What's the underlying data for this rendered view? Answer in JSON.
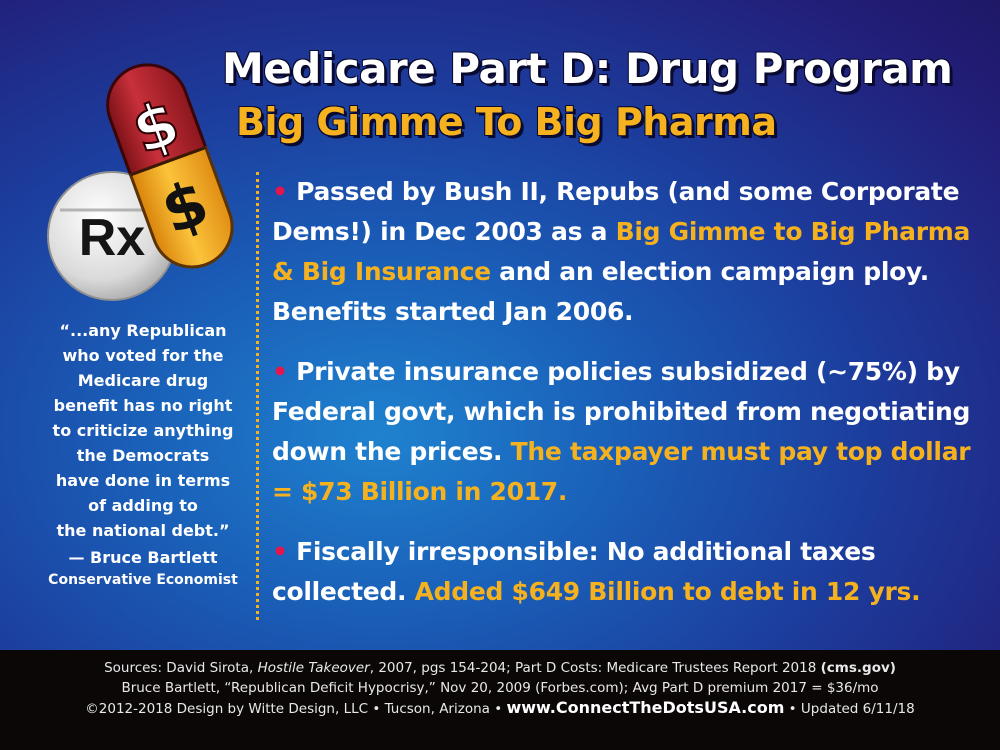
{
  "title": {
    "line1": "Medicare Part D: Drug Program",
    "line2": "Big Gimme To Big Pharma"
  },
  "illustration": {
    "rx_label": "Rx",
    "dollar_top": "$",
    "dollar_bottom": "$",
    "colors": {
      "capsule_top": "#b4232b",
      "capsule_bottom": "#f6a91d",
      "tablet": "#e2e2e2"
    }
  },
  "quote": {
    "lines": [
      "“...any Republican",
      "who voted for the",
      "Medicare drug",
      "benefit has no right",
      "to criticize anything",
      "the Democrats",
      "have done in terms",
      "of adding to",
      "the national debt.”"
    ],
    "author": "— Bruce Bartlett",
    "role": "Conservative Economist"
  },
  "bullets": [
    {
      "dot": "•",
      "text1": " Passed by Bush II, Repubs (and some Corporate Dems!) in Dec 2003 as a ",
      "highlight": "Big Gimme to Big Pharma & Big Insurance",
      "text2": " and an election campaign ploy. Benefits started Jan 2006."
    },
    {
      "dot": "•",
      "text1": " Private insurance policies subsidized (~75%) by Federal govt, which is prohibited from negotiating down the prices. ",
      "highlight": "The taxpayer must pay top dollar = $73 Billion in 2017.",
      "text2": ""
    },
    {
      "dot": "•",
      "text1": " Fiscally irresponsible: No additional taxes collected. ",
      "highlight": "Added $649 Billion to debt in 12 yrs.",
      "text2": ""
    }
  ],
  "footer": {
    "line1_a": "Sources:  David Sirota, ",
    "line1_book": "Hostile Takeover",
    "line1_b": ", 2007, pgs 154-204;  Part D Costs: Medicare Trustees Report 2018 ",
    "line1_site": "(cms.gov)",
    "line2": "Bruce Bartlett, “Republican Deficit Hypocrisy,” Nov 20, 2009 (Forbes.com); Avg Part D premium 2017 = $36/mo",
    "line3_a": "©2012-2018 Design by Witte Design, LLC • Tucson, Arizona  •  ",
    "line3_url": "www.ConnectTheDotsUSA.com",
    "line3_b": "  •  Updated 6/11/18"
  },
  "colors": {
    "accent": "#f6b21e",
    "bullet_dot": "#e4174d",
    "footer_bg": "#0c0707"
  }
}
